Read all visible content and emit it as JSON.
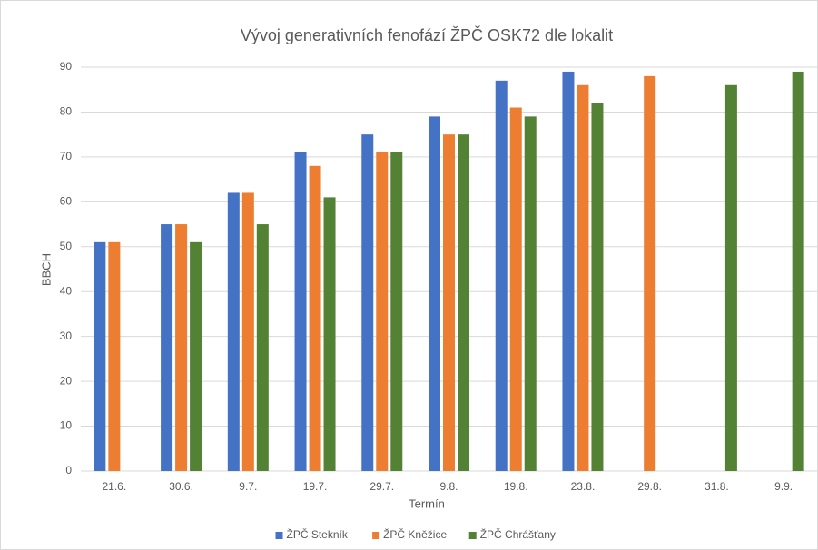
{
  "chart_data": {
    "type": "bar",
    "title": "Vývoj generativních fenofází ŽPČ OSK72 dle lokalit",
    "x_label": "Termín",
    "y_label": "BBCH",
    "categories": [
      "21.6.",
      "30.6.",
      "9.7.",
      "19.7.",
      "29.7.",
      "9.8.",
      "19.8.",
      "23.8.",
      "29.8.",
      "31.8.",
      "9.9."
    ],
    "series": [
      {
        "name": "ŽPČ Stekník",
        "color": "#4472c4",
        "values": [
          51,
          55,
          62,
          71,
          75,
          79,
          87,
          89,
          null,
          null,
          null
        ]
      },
      {
        "name": "ŽPČ Kněžice",
        "color": "#ed7d31",
        "values": [
          51,
          55,
          62,
          68,
          71,
          75,
          81,
          86,
          88,
          null,
          null
        ]
      },
      {
        "name": "ŽPČ Chrášťany",
        "color": "#548235",
        "values": [
          null,
          51,
          55,
          61,
          71,
          75,
          79,
          82,
          null,
          86,
          89
        ]
      }
    ],
    "ylim": [
      0,
      90
    ],
    "yticks": [
      0,
      10,
      20,
      30,
      40,
      50,
      60,
      70,
      80,
      90
    ],
    "grid": true,
    "legend": "bottom"
  }
}
